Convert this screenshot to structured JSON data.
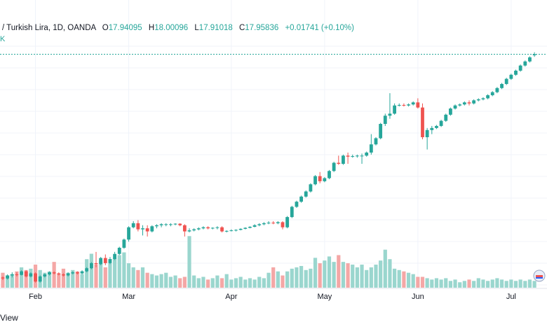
{
  "header": {
    "symbol": "/ Turkish Lira, 1D, OANDA",
    "open_label": "O",
    "open": "17.94095",
    "high_label": "H",
    "high": "18.00096",
    "low_label": "L",
    "low": "17.91018",
    "close_label": "C",
    "close": "17.95836",
    "change": "+0.01741 (+0.10%)"
  },
  "sub_label": "K",
  "footer": {
    "view_label": "View"
  },
  "colors": {
    "up": "#26a69a",
    "down": "#ef5350",
    "grid": "#f0f3fa",
    "up_volume": "#9ad6ce",
    "down_volume": "#f4a7a6"
  },
  "chart_data": {
    "type": "candlestick",
    "x_tick_labels": [
      "Feb",
      "Mar",
      "Apr",
      "May",
      "Jun",
      "Jul"
    ],
    "x_tick_index": [
      7,
      27,
      49,
      69,
      89,
      109
    ],
    "ylim": [
      13.4,
      18.2
    ],
    "volume_max": 100,
    "candles": [
      [
        13.6,
        13.62,
        13.55,
        13.58,
        22
      ],
      [
        13.58,
        13.66,
        13.56,
        13.64,
        18
      ],
      [
        13.64,
        13.7,
        13.6,
        13.66,
        20
      ],
      [
        13.66,
        13.7,
        13.62,
        13.65,
        24
      ],
      [
        13.65,
        13.74,
        13.64,
        13.72,
        30
      ],
      [
        13.72,
        13.74,
        13.6,
        13.62,
        26
      ],
      [
        13.62,
        13.7,
        13.6,
        13.68,
        28
      ],
      [
        13.68,
        13.7,
        13.5,
        13.52,
        34
      ],
      [
        13.52,
        13.64,
        13.5,
        13.62,
        26
      ],
      [
        13.62,
        13.68,
        13.6,
        13.66,
        22
      ],
      [
        13.66,
        13.72,
        13.64,
        13.7,
        24
      ],
      [
        13.7,
        13.72,
        13.66,
        13.68,
        38
      ],
      [
        13.68,
        13.7,
        13.64,
        13.66,
        20
      ],
      [
        13.66,
        13.68,
        13.62,
        13.64,
        28
      ],
      [
        13.64,
        13.7,
        13.62,
        13.68,
        22
      ],
      [
        13.68,
        13.72,
        13.66,
        13.7,
        26
      ],
      [
        13.7,
        13.72,
        13.66,
        13.68,
        24
      ],
      [
        13.68,
        13.74,
        13.66,
        13.72,
        20
      ],
      [
        13.72,
        13.8,
        13.7,
        13.78,
        42
      ],
      [
        13.78,
        13.9,
        13.76,
        13.88,
        50
      ],
      [
        13.88,
        14.1,
        13.8,
        13.86,
        34
      ],
      [
        13.86,
        14.0,
        13.84,
        13.98,
        40
      ],
      [
        13.98,
        14.05,
        13.84,
        13.88,
        30
      ],
      [
        13.88,
        14.0,
        13.86,
        13.96,
        36
      ],
      [
        13.96,
        14.1,
        13.94,
        14.06,
        44
      ],
      [
        14.06,
        14.2,
        14.04,
        14.18,
        48
      ],
      [
        14.18,
        14.36,
        14.16,
        14.34,
        52
      ],
      [
        14.34,
        14.6,
        14.3,
        14.58,
        36
      ],
      [
        14.58,
        14.7,
        14.56,
        14.66,
        30
      ],
      [
        14.66,
        14.72,
        14.5,
        14.54,
        26
      ],
      [
        14.54,
        14.62,
        14.42,
        14.56,
        30
      ],
      [
        14.56,
        14.62,
        14.4,
        14.5,
        22
      ],
      [
        14.5,
        14.62,
        14.48,
        14.6,
        20
      ],
      [
        14.6,
        14.64,
        14.56,
        14.62,
        18
      ],
      [
        14.62,
        14.66,
        14.58,
        14.64,
        20
      ],
      [
        14.64,
        14.66,
        14.6,
        14.64,
        22
      ],
      [
        14.64,
        14.66,
        14.6,
        14.64,
        16
      ],
      [
        14.64,
        14.66,
        14.62,
        14.65,
        18
      ],
      [
        14.65,
        14.66,
        14.6,
        14.62,
        14
      ],
      [
        14.62,
        14.64,
        14.4,
        14.5,
        16
      ],
      [
        14.5,
        14.56,
        14.48,
        14.52,
        76
      ],
      [
        14.52,
        14.56,
        14.5,
        14.54,
        18
      ],
      [
        14.54,
        14.58,
        14.52,
        14.56,
        14
      ],
      [
        14.56,
        14.6,
        14.54,
        14.58,
        16
      ],
      [
        14.58,
        14.6,
        14.54,
        14.56,
        12
      ],
      [
        14.56,
        14.58,
        14.54,
        14.57,
        14
      ],
      [
        14.57,
        14.6,
        14.54,
        14.58,
        18
      ],
      [
        14.58,
        14.6,
        14.48,
        14.5,
        14
      ],
      [
        14.5,
        14.52,
        14.48,
        14.51,
        20
      ],
      [
        14.51,
        14.54,
        14.5,
        14.52,
        12
      ],
      [
        14.52,
        14.54,
        14.5,
        14.53,
        14
      ],
      [
        14.53,
        14.56,
        14.52,
        14.55,
        16
      ],
      [
        14.55,
        14.58,
        14.54,
        14.57,
        12
      ],
      [
        14.57,
        14.6,
        14.56,
        14.59,
        14
      ],
      [
        14.59,
        14.64,
        14.58,
        14.62,
        12
      ],
      [
        14.62,
        14.66,
        14.6,
        14.64,
        16
      ],
      [
        14.64,
        14.68,
        14.62,
        14.66,
        14
      ],
      [
        14.66,
        14.7,
        14.64,
        14.67,
        22
      ],
      [
        14.67,
        14.7,
        14.64,
        14.66,
        30
      ],
      [
        14.66,
        14.7,
        14.64,
        14.68,
        24
      ],
      [
        14.68,
        14.7,
        14.54,
        14.58,
        18
      ],
      [
        14.58,
        14.8,
        14.56,
        14.78,
        24
      ],
      [
        14.78,
        15.0,
        14.76,
        14.98,
        28
      ],
      [
        14.98,
        15.1,
        14.96,
        15.08,
        30
      ],
      [
        15.08,
        15.2,
        15.06,
        15.18,
        32
      ],
      [
        15.18,
        15.3,
        15.16,
        15.28,
        26
      ],
      [
        15.28,
        15.44,
        15.26,
        15.42,
        28
      ],
      [
        15.42,
        15.6,
        15.4,
        15.58,
        44
      ],
      [
        15.58,
        15.66,
        15.44,
        15.48,
        36
      ],
      [
        15.48,
        15.56,
        15.46,
        15.54,
        40
      ],
      [
        15.54,
        15.7,
        15.52,
        15.68,
        46
      ],
      [
        15.68,
        15.86,
        15.66,
        15.84,
        38
      ],
      [
        15.84,
        15.98,
        15.8,
        15.82,
        48
      ],
      [
        15.82,
        16.0,
        15.8,
        15.98,
        38
      ],
      [
        15.98,
        16.04,
        15.82,
        15.96,
        36
      ],
      [
        15.96,
        16.0,
        15.94,
        15.97,
        34
      ],
      [
        15.97,
        16.0,
        15.94,
        15.98,
        30
      ],
      [
        15.98,
        16.02,
        15.82,
        15.98,
        34
      ],
      [
        15.98,
        16.06,
        15.96,
        16.04,
        26
      ],
      [
        16.04,
        16.4,
        16.0,
        16.2,
        30
      ],
      [
        16.2,
        16.34,
        16.18,
        16.32,
        34
      ],
      [
        16.32,
        16.62,
        16.3,
        16.6,
        40
      ],
      [
        16.6,
        16.8,
        16.56,
        16.76,
        56
      ],
      [
        16.76,
        17.2,
        16.7,
        16.8,
        42
      ],
      [
        16.8,
        17.0,
        16.78,
        16.96,
        28
      ],
      [
        16.96,
        17.0,
        16.94,
        16.97,
        26
      ],
      [
        16.97,
        17.0,
        16.94,
        16.96,
        24
      ],
      [
        16.96,
        17.0,
        16.94,
        16.98,
        22
      ],
      [
        16.98,
        17.04,
        16.96,
        17.02,
        20
      ],
      [
        17.02,
        17.1,
        16.9,
        16.92,
        16
      ],
      [
        16.92,
        17.0,
        16.3,
        16.34,
        16
      ],
      [
        16.34,
        16.52,
        16.1,
        16.48,
        14
      ],
      [
        16.48,
        16.56,
        16.4,
        16.52,
        12
      ],
      [
        16.52,
        16.58,
        16.5,
        16.56,
        14
      ],
      [
        16.56,
        16.68,
        16.54,
        16.66,
        12
      ],
      [
        16.66,
        16.8,
        16.64,
        16.78,
        14
      ],
      [
        16.78,
        16.92,
        16.76,
        16.9,
        10
      ],
      [
        16.9,
        16.98,
        16.88,
        16.96,
        12
      ],
      [
        16.96,
        17.0,
        16.94,
        16.98,
        8
      ],
      [
        16.98,
        17.04,
        16.96,
        17.02,
        10
      ],
      [
        17.02,
        17.06,
        16.96,
        17.0,
        12
      ],
      [
        17.0,
        17.08,
        16.98,
        17.06,
        10
      ],
      [
        17.06,
        17.1,
        17.04,
        17.08,
        14
      ],
      [
        17.08,
        17.12,
        17.06,
        17.1,
        12
      ],
      [
        17.1,
        17.18,
        17.08,
        17.16,
        10
      ],
      [
        17.16,
        17.24,
        17.14,
        17.22,
        12
      ],
      [
        17.22,
        17.32,
        17.2,
        17.3,
        14
      ],
      [
        17.3,
        17.4,
        17.28,
        17.38,
        12
      ],
      [
        17.38,
        17.5,
        17.36,
        17.48,
        10
      ],
      [
        17.48,
        17.58,
        17.46,
        17.56,
        12
      ],
      [
        17.56,
        17.66,
        17.54,
        17.64,
        10
      ],
      [
        17.64,
        17.76,
        17.62,
        17.74,
        12
      ],
      [
        17.74,
        17.84,
        17.72,
        17.82,
        10
      ],
      [
        17.82,
        17.92,
        17.8,
        17.9,
        12
      ],
      [
        17.94,
        18.0,
        17.91,
        17.96,
        10
      ]
    ]
  }
}
